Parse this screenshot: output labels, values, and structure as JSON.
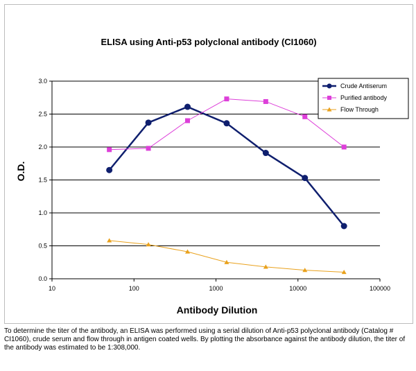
{
  "chart_data": {
    "type": "line",
    "title": "ELISA using Anti-p53 polyclonal antibody (CI1060)",
    "xlabel": "Antibody Dilution",
    "ylabel": "O.D.",
    "x_scale": "log",
    "xlim": [
      10,
      100000
    ],
    "ylim": [
      0,
      3.0
    ],
    "x_ticks": [
      "10",
      "100",
      "1000",
      "10000",
      "100000"
    ],
    "y_ticks": [
      "0.0",
      "0.5",
      "1.0",
      "1.5",
      "2.0",
      "2.5",
      "3.0"
    ],
    "grid": "horizontal",
    "legend_position": "top-right",
    "x": [
      50,
      150,
      450,
      1350,
      4050,
      12150,
      36450
    ],
    "series": [
      {
        "name": "Crude Antiserum",
        "color": "#0f1f6e",
        "marker": "circle",
        "values": [
          1.65,
          2.37,
          2.61,
          2.36,
          1.91,
          1.53,
          0.8
        ]
      },
      {
        "name": "Purified antibody",
        "color": "#dd3fd9",
        "marker": "square",
        "values": [
          1.96,
          1.98,
          2.4,
          2.73,
          2.69,
          2.46,
          2.0
        ]
      },
      {
        "name": "Flow Through",
        "color": "#e9a11c",
        "marker": "triangle",
        "values": [
          0.58,
          0.52,
          0.41,
          0.25,
          0.18,
          0.13,
          0.1
        ]
      }
    ]
  },
  "caption": "To determine the titer of the antibody, an ELISA was performed using a serial dilution of Anti-p53 polyclonal antibody (Catalog # CI1060), crude serum and flow through in antigen coated wells. By plotting the absorbance against the antibody dilution, the titer of the antibody was estimated to be 1:308,000."
}
